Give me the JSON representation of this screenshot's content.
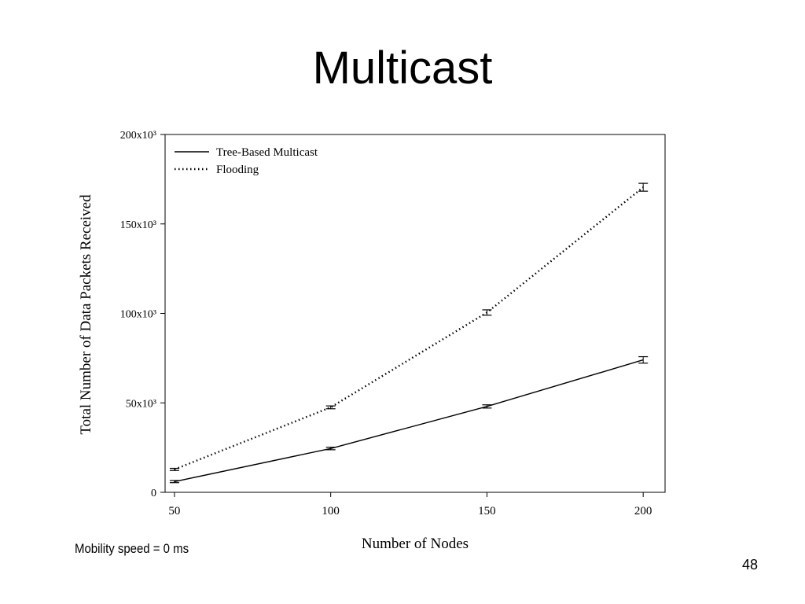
{
  "slide": {
    "title": "Multicast",
    "note": "Mobility speed = 0 ms",
    "page_number": "48"
  },
  "chart_data": {
    "type": "line",
    "title": "",
    "xlabel": "Number of Nodes",
    "ylabel": "Total Number of Data Packets Received",
    "x": [
      50,
      100,
      150,
      200
    ],
    "xlim": [
      47,
      207
    ],
    "ylim": [
      0,
      200000
    ],
    "x_ticks": [
      50,
      100,
      150,
      200
    ],
    "x_tick_labels": [
      "50",
      "100",
      "150",
      "200"
    ],
    "y_ticks": [
      0,
      50000,
      100000,
      150000,
      200000
    ],
    "y_tick_labels": [
      "0",
      "50x10³",
      "100x10³",
      "150x10³",
      "200x10³"
    ],
    "legend_position": "top-left",
    "grid": false,
    "series": [
      {
        "name": "Tree-Based Multicast",
        "style": "solid",
        "values": [
          6000,
          24500,
          48000,
          74000
        ],
        "error": [
          600,
          700,
          900,
          1800
        ]
      },
      {
        "name": "Flooding",
        "style": "dotted",
        "values": [
          12800,
          47500,
          100500,
          170500
        ],
        "error": [
          600,
          800,
          1500,
          2200
        ]
      }
    ]
  }
}
